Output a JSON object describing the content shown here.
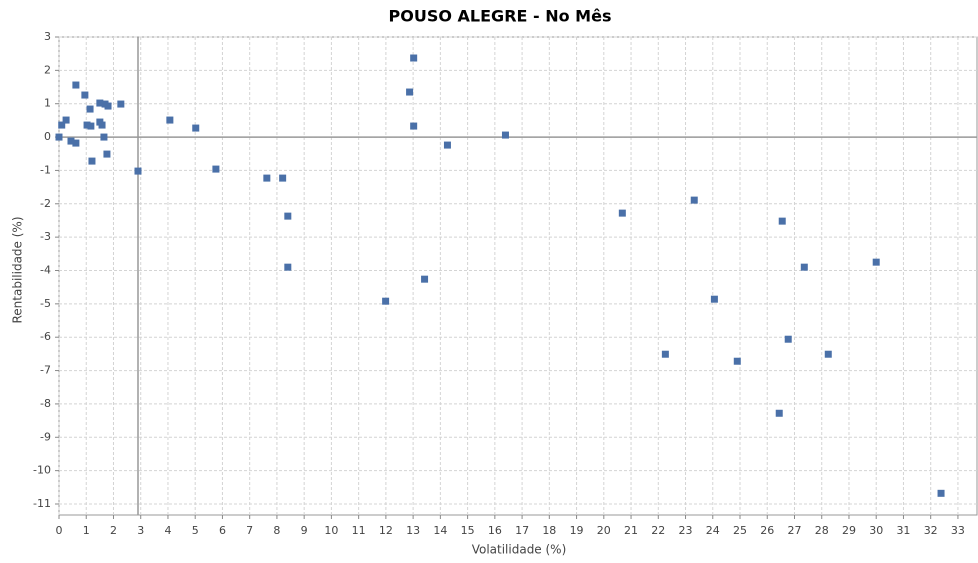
{
  "chart_data": {
    "type": "scatter",
    "title": "POUSO ALEGRE - No Mês",
    "xlabel": "Volatilidade (%)",
    "ylabel": "Rentabilidade (%)",
    "color": "#4a70a8",
    "grid": true,
    "x_marker": 2.9,
    "y_marker": 0,
    "xlim": [
      0,
      33.7
    ],
    "ylim": [
      -11.33,
      3.0
    ],
    "xticks": [
      0,
      1,
      2,
      3,
      4,
      5,
      6,
      7,
      8,
      9,
      10,
      11,
      12,
      13,
      14,
      15,
      16,
      17,
      18,
      19,
      20,
      21,
      22,
      23,
      24,
      25,
      26,
      27,
      28,
      29,
      30,
      31,
      32,
      33
    ],
    "yticks": [
      -11,
      -10,
      -9,
      -8,
      -7,
      -6,
      -5,
      -4,
      -3,
      -2,
      -1,
      0,
      1,
      2,
      3
    ],
    "x": [
      0,
      0.1,
      0.26,
      0.44,
      0.62,
      0.62,
      0.95,
      1.03,
      1.14,
      1.17,
      1.21,
      1.5,
      1.5,
      1.58,
      1.65,
      1.69,
      1.8,
      1.76,
      2.27,
      2.9,
      4.07,
      5.02,
      5.76,
      7.63,
      8.21,
      8.4,
      8.4,
      11.99,
      12.87,
      13.02,
      13.02,
      13.42,
      14.26,
      16.39,
      20.68,
      22.26,
      23.32,
      24.06,
      24.9,
      26.44,
      26.55,
      26.77,
      27.36,
      28.24,
      30.0,
      32.38
    ],
    "values": [
      0,
      0.36,
      0.51,
      -0.12,
      -0.18,
      1.56,
      1.26,
      0.36,
      0.84,
      0.33,
      -0.72,
      1.02,
      0.45,
      0.36,
      0,
      0.99,
      0.93,
      -0.51,
      0.99,
      -1.02,
      0.51,
      0.27,
      -0.96,
      -1.23,
      -1.23,
      -2.37,
      -3.9,
      -4.92,
      1.35,
      2.37,
      0.33,
      -4.26,
      -0.24,
      0.06,
      -2.28,
      -6.51,
      -1.89,
      -4.86,
      -6.72,
      -8.28,
      -2.52,
      -6.06,
      -3.9,
      -6.51,
      -3.75,
      -10.68
    ]
  }
}
